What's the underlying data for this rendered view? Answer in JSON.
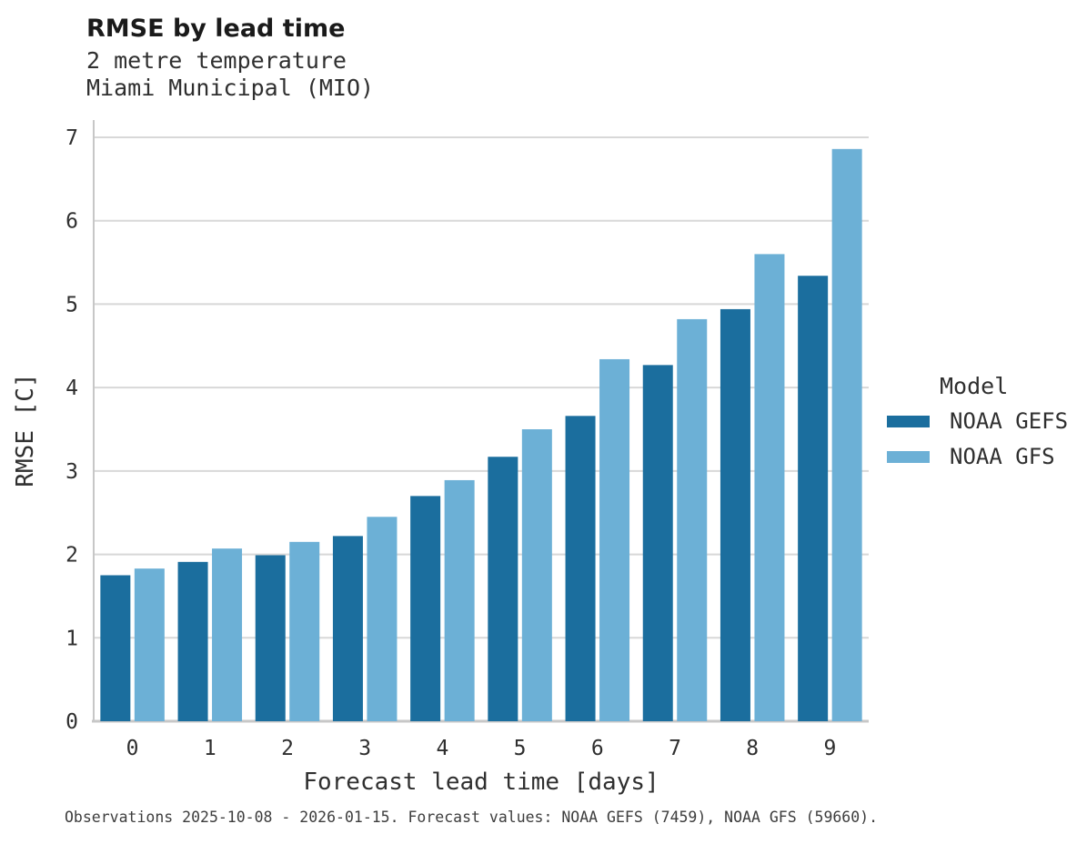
{
  "chart_data": {
    "type": "bar",
    "title": "RMSE by lead time",
    "subtitle_lines": [
      "2 metre temperature",
      "Miami Municipal (MIO)"
    ],
    "xlabel": "Forecast lead time [days]",
    "ylabel": "RMSE [C]",
    "categories": [
      "0",
      "1",
      "2",
      "3",
      "4",
      "5",
      "6",
      "7",
      "8",
      "9"
    ],
    "series": [
      {
        "name": "NOAA GEFS",
        "color": "#1b6e9e",
        "values": [
          1.75,
          1.91,
          1.99,
          2.22,
          2.7,
          3.17,
          3.66,
          4.27,
          4.94,
          5.34
        ]
      },
      {
        "name": "NOAA GFS",
        "color": "#6cb0d6",
        "values": [
          1.83,
          2.07,
          2.15,
          2.45,
          2.89,
          3.5,
          4.34,
          4.82,
          5.6,
          6.86
        ]
      }
    ],
    "ylim": [
      0,
      7
    ],
    "yticks": [
      0,
      1,
      2,
      3,
      4,
      5,
      6,
      7
    ],
    "grid": "horizontal",
    "grid_color": "#d8d8d8",
    "spine_color": "#c7c7c7",
    "tick_label_color": "#2f2f2f",
    "legend": {
      "title": "Model",
      "position": "right"
    },
    "caption": "Observations 2025-10-08 - 2026-01-15. Forecast values: NOAA GEFS (7459), NOAA GFS (59660)."
  }
}
